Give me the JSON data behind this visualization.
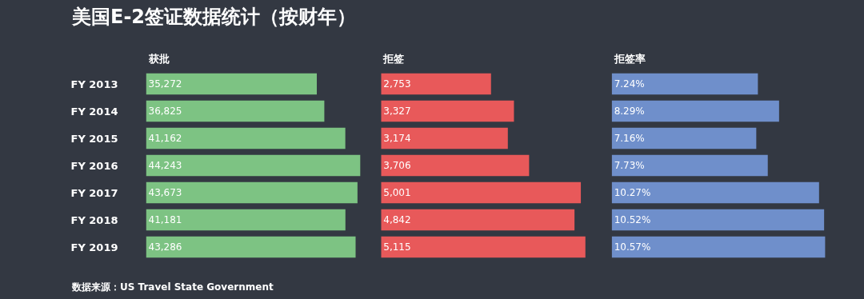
{
  "chart_data": [
    {
      "type": "bar",
      "orientation": "horizontal",
      "title": "获批",
      "categories": [
        "FY 2013",
        "FY 2014",
        "FY 2015",
        "FY 2016",
        "FY 2017",
        "FY 2018",
        "FY 2019"
      ],
      "values": [
        35272,
        36825,
        41162,
        44243,
        43673,
        41181,
        43286
      ],
      "value_labels": [
        "35,272",
        "36,825",
        "41,162",
        "44,243",
        "43,673",
        "41,181",
        "43,286"
      ],
      "color": "#7dc383",
      "tick_labels": "y",
      "annotations": [
        "美国E-2签证数据统计（按财年）",
        "数据来源：US Travel State Government"
      ]
    },
    {
      "type": "bar",
      "orientation": "horizontal",
      "title": "拒签",
      "categories": [
        "FY 2013",
        "FY 2014",
        "FY 2015",
        "FY 2016",
        "FY 2017",
        "FY 2018",
        "FY 2019"
      ],
      "values": [
        2753,
        3327,
        3174,
        3706,
        5001,
        4842,
        5115
      ],
      "value_labels": [
        "2,753",
        "3,327",
        "3,174",
        "3,706",
        "5,001",
        "4,842",
        "5,115"
      ],
      "color": "#e8595a",
      "tick_labels": false
    },
    {
      "type": "bar",
      "orientation": "horizontal",
      "title": "拒签率",
      "categories": [
        "FY 2013",
        "FY 2014",
        "FY 2015",
        "FY 2016",
        "FY 2017",
        "FY 2018",
        "FY 2019"
      ],
      "values": [
        7.24,
        8.29,
        7.16,
        7.73,
        10.27,
        10.52,
        10.57
      ],
      "value_labels": [
        "7.24%",
        "8.29%",
        "7.16%",
        "7.73%",
        "10.27%",
        "10.52%",
        "10.57%"
      ],
      "color": "#6f8fcb",
      "tick_labels": false
    }
  ]
}
